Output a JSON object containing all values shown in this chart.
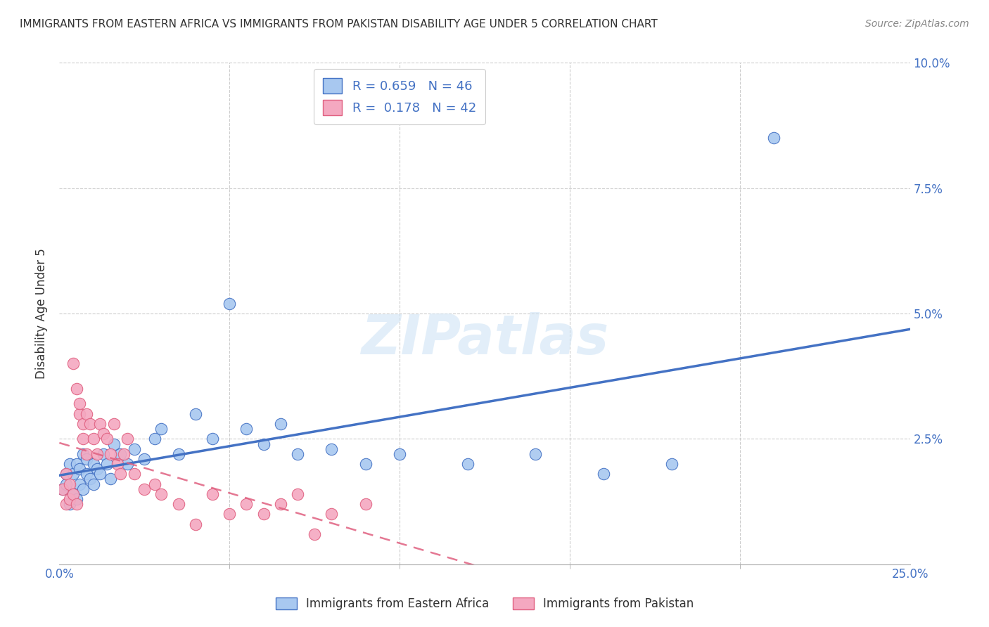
{
  "title": "IMMIGRANTS FROM EASTERN AFRICA VS IMMIGRANTS FROM PAKISTAN DISABILITY AGE UNDER 5 CORRELATION CHART",
  "source": "Source: ZipAtlas.com",
  "ylabel_label": "Disability Age Under 5",
  "legend_bottom": [
    "Immigrants from Eastern Africa",
    "Immigrants from Pakistan"
  ],
  "R_blue": 0.659,
  "N_blue": 46,
  "R_pink": 0.178,
  "N_pink": 42,
  "blue_color": "#A8C8F0",
  "pink_color": "#F4A8C0",
  "blue_line_color": "#4472C4",
  "pink_line_color": "#E06080",
  "watermark_text": "ZIPatlas",
  "xlim": [
    0.0,
    0.25
  ],
  "ylim": [
    0.0,
    0.1
  ],
  "blue_scatter_x": [
    0.001,
    0.002,
    0.002,
    0.003,
    0.003,
    0.004,
    0.004,
    0.005,
    0.005,
    0.006,
    0.006,
    0.007,
    0.007,
    0.008,
    0.008,
    0.009,
    0.01,
    0.01,
    0.011,
    0.012,
    0.013,
    0.014,
    0.015,
    0.016,
    0.018,
    0.02,
    0.022,
    0.025,
    0.028,
    0.03,
    0.035,
    0.04,
    0.045,
    0.05,
    0.055,
    0.06,
    0.065,
    0.07,
    0.08,
    0.09,
    0.1,
    0.12,
    0.14,
    0.16,
    0.18,
    0.21
  ],
  "blue_scatter_y": [
    0.015,
    0.016,
    0.018,
    0.012,
    0.02,
    0.014,
    0.018,
    0.013,
    0.02,
    0.016,
    0.019,
    0.015,
    0.022,
    0.018,
    0.021,
    0.017,
    0.016,
    0.02,
    0.019,
    0.018,
    0.022,
    0.02,
    0.017,
    0.024,
    0.022,
    0.02,
    0.023,
    0.021,
    0.025,
    0.027,
    0.022,
    0.03,
    0.025,
    0.052,
    0.027,
    0.024,
    0.028,
    0.022,
    0.023,
    0.02,
    0.022,
    0.02,
    0.022,
    0.018,
    0.02,
    0.085
  ],
  "pink_scatter_x": [
    0.001,
    0.002,
    0.002,
    0.003,
    0.003,
    0.004,
    0.004,
    0.005,
    0.005,
    0.006,
    0.006,
    0.007,
    0.007,
    0.008,
    0.008,
    0.009,
    0.01,
    0.011,
    0.012,
    0.013,
    0.014,
    0.015,
    0.016,
    0.017,
    0.018,
    0.019,
    0.02,
    0.022,
    0.025,
    0.028,
    0.03,
    0.035,
    0.04,
    0.045,
    0.05,
    0.055,
    0.06,
    0.065,
    0.07,
    0.075,
    0.08,
    0.09
  ],
  "pink_scatter_y": [
    0.015,
    0.012,
    0.018,
    0.013,
    0.016,
    0.04,
    0.014,
    0.035,
    0.012,
    0.03,
    0.032,
    0.028,
    0.025,
    0.03,
    0.022,
    0.028,
    0.025,
    0.022,
    0.028,
    0.026,
    0.025,
    0.022,
    0.028,
    0.02,
    0.018,
    0.022,
    0.025,
    0.018,
    0.015,
    0.016,
    0.014,
    0.012,
    0.008,
    0.014,
    0.01,
    0.012,
    0.01,
    0.012,
    0.014,
    0.006,
    0.01,
    0.012
  ]
}
